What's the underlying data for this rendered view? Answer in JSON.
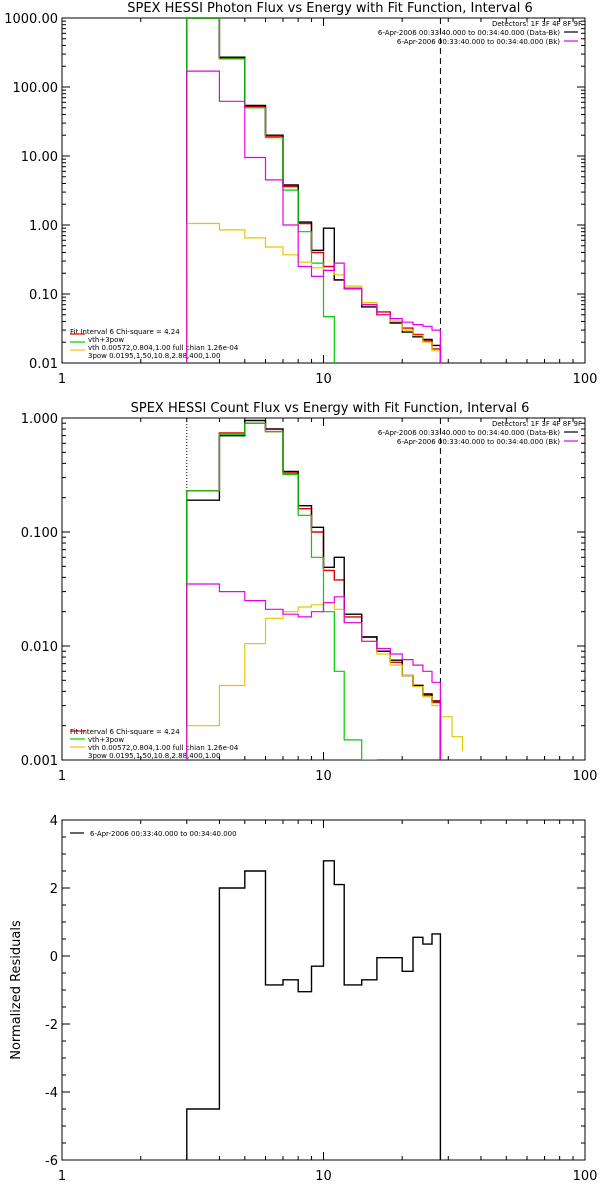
{
  "chart_data": [
    {
      "type": "line",
      "title": "SPEX HESSI Photon Flux vs Energy with Fit Function, Interval 6",
      "scale": {
        "x": "log",
        "y": "log"
      },
      "xlim": [
        1,
        100
      ],
      "ylim": [
        0.01,
        1000
      ],
      "x_tick_labels": [
        "1",
        "10",
        "100"
      ],
      "y_tick_labels": [
        "0.01",
        "0.10",
        "1.00",
        "10.00",
        "100.00",
        "1000.00"
      ],
      "header": [
        "Detectors: 1F 3F 4F 8F 9F",
        "6-Apr-2006 00:33:40.000 to 00:34:40.000 (Data-Bk)",
        "6-Apr-2006 00:33:40.000 to 00:34:40.000 (Bk)"
      ],
      "fit_text": [
        "Fit Interval 6   Chi-square = 4.24",
        "vth+3pow",
        "vth 0.00572,0.804,1.00  full chian 1.26e-04",
        "3pow 0.0195,1.50,10.8,2.88,400,1.00"
      ],
      "colors": {
        "data": "#000000",
        "background": "#e600e6",
        "total": "#e60000",
        "thermal": "#00cc00",
        "power": "#e6c800"
      },
      "vlines": [
        3.0,
        28.0
      ],
      "edges": [
        3,
        4,
        5,
        6,
        7,
        8,
        9,
        10,
        11,
        12,
        14,
        16,
        18,
        20,
        22,
        24,
        26,
        28
      ],
      "series": [
        {
          "key": "data",
          "values": [
            1000,
            270,
            54,
            20,
            3.8,
            1.1,
            0.43,
            0.9,
            0.16,
            0.12,
            0.065,
            0.05,
            0.038,
            0.028,
            0.024,
            0.022,
            0.018
          ]
        },
        {
          "key": "total",
          "values": [
            1000,
            260,
            52,
            19,
            3.6,
            1.05,
            0.4,
            0.25,
            0.16,
            0.12,
            0.07,
            0.055,
            0.04,
            0.032,
            0.026,
            0.021,
            0.016
          ]
        },
        {
          "key": "thermal",
          "values": [
            1000,
            255,
            50,
            18.5,
            3.2,
            0.8,
            0.28,
            0.047
          ]
        },
        {
          "key": "power",
          "values": [
            1.05,
            0.85,
            0.65,
            0.48,
            0.37,
            0.29,
            0.24,
            0.22,
            0.19,
            0.13,
            0.075,
            0.05,
            0.04,
            0.03,
            0.025,
            0.02,
            0.015,
            0.011
          ]
        },
        {
          "key": "background",
          "values": [
            170,
            62,
            9.5,
            4.5,
            1.0,
            0.25,
            0.18,
            0.22,
            0.28,
            0.12,
            0.07,
            0.05,
            0.044,
            0.039,
            0.036,
            0.034,
            0.03
          ]
        }
      ]
    },
    {
      "type": "line",
      "title": "SPEX HESSI Count Flux vs Energy with Fit Function, Interval 6",
      "scale": {
        "x": "log",
        "y": "log"
      },
      "xlim": [
        1,
        100
      ],
      "ylim": [
        0.001,
        1
      ],
      "x_tick_labels": [
        "1",
        "10",
        "100"
      ],
      "y_tick_labels": [
        "0.001",
        "0.010",
        "0.100",
        "1.000"
      ],
      "header": [
        "Detectors: 1F 3F 4F 8F 9F",
        "6-Apr-2006 00:33:40.000 to 00:34:40.000 (Data-Bk)",
        "6-Apr-2006 00:33:40.000 to 00:34:40.000 (Bk)"
      ],
      "fit_text": [
        "Fit Interval 6   Chi-square = 4.24",
        "vth+3pow",
        "vth 0.00572,0.804,1.00  full chian 1.26e-04",
        "3pow 0.0195,1.50,10.8,2.88,400,1.00"
      ],
      "colors": {
        "data": "#000000",
        "background": "#e600e6",
        "total": "#e60000",
        "thermal": "#00cc00",
        "power": "#e6c800"
      },
      "vlines": [
        3.0,
        28.0
      ],
      "edges": [
        3,
        4,
        5,
        6,
        7,
        8,
        9,
        10,
        11,
        12,
        14,
        16,
        18,
        20,
        22,
        24,
        26,
        28,
        31,
        34
      ],
      "series": [
        {
          "key": "data",
          "values": [
            0.19,
            0.7,
            0.95,
            0.8,
            0.34,
            0.17,
            0.11,
            0.049,
            0.06,
            0.019,
            0.012,
            0.009,
            0.0075,
            0.0055,
            0.0045,
            0.0038,
            0.0033
          ]
        },
        {
          "key": "total",
          "values": [
            0.23,
            0.74,
            0.9,
            0.76,
            0.33,
            0.16,
            0.1,
            0.046,
            0.038,
            0.018,
            0.012,
            0.009,
            0.0072,
            0.0055,
            0.0045,
            0.0037,
            0.0032
          ]
        },
        {
          "key": "thermal",
          "values": [
            0.23,
            0.72,
            0.9,
            0.76,
            0.32,
            0.14,
            0.06,
            0.02,
            0.006,
            0.0015,
            0.0008
          ]
        },
        {
          "key": "power",
          "values": [
            0.002,
            0.0045,
            0.0105,
            0.0175,
            0.02,
            0.022,
            0.023,
            0.024,
            0.021,
            0.016,
            0.011,
            0.0085,
            0.0068,
            0.0055,
            0.0044,
            0.0036,
            0.003,
            0.0024,
            0.0016,
            0.0012
          ]
        },
        {
          "key": "background",
          "values": [
            0.035,
            0.03,
            0.025,
            0.021,
            0.019,
            0.018,
            0.02,
            0.024,
            0.027,
            0.016,
            0.011,
            0.0095,
            0.0085,
            0.0076,
            0.0068,
            0.006,
            0.0048
          ]
        }
      ]
    },
    {
      "type": "line",
      "scale": {
        "x": "log",
        "y": "linear"
      },
      "ylabel": "Normalized Residuals",
      "xlim": [
        1,
        100
      ],
      "ylim": [
        -6,
        4
      ],
      "x_tick_labels": [
        "1",
        "10",
        "100"
      ],
      "y_tick_labels": [
        "-6",
        "-4",
        "-2",
        "0",
        "2",
        "4"
      ],
      "legend": "6-Apr-2006 00:33:40.000 to 00:34:40.000",
      "edges": [
        3,
        4,
        5,
        6,
        7,
        8,
        9,
        10,
        11,
        12,
        14,
        16,
        18,
        20,
        22,
        24,
        26,
        28
      ],
      "series": [
        {
          "key": "data",
          "values": [
            -4.5,
            2.0,
            2.5,
            -0.85,
            -0.7,
            -1.05,
            -0.3,
            2.8,
            2.1,
            -0.85,
            -0.7,
            -0.05,
            -0.05,
            -0.45,
            0.55,
            0.35,
            0.65
          ]
        }
      ]
    }
  ]
}
